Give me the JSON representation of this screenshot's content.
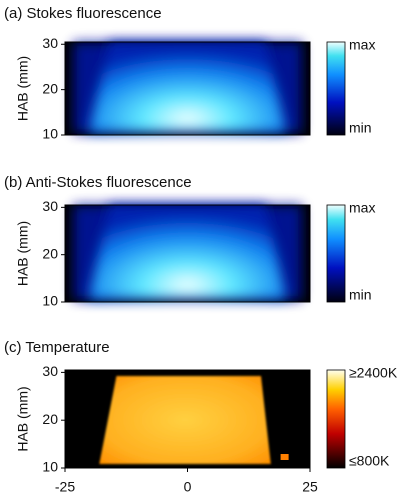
{
  "chart_data": [
    {
      "type": "heatmap",
      "title": "(a) Stokes fluorescence",
      "ylabel": "HAB (mm)",
      "xlim": [
        -25,
        25
      ],
      "ylim": [
        10,
        30.5
      ],
      "yticks": [
        10,
        20,
        30
      ],
      "colormap": "blue",
      "colorbar_max": "max",
      "colorbar_min": "min"
    },
    {
      "type": "heatmap",
      "title": "(b) Anti-Stokes fluorescence",
      "ylabel": "HAB (mm)",
      "xlim": [
        -25,
        25
      ],
      "ylim": [
        10,
        30.5
      ],
      "yticks": [
        10,
        20,
        30
      ],
      "colormap": "blue",
      "colorbar_max": "max",
      "colorbar_min": "min"
    },
    {
      "type": "heatmap",
      "title": "(c) Temperature",
      "ylabel": "HAB (mm)",
      "xlim": [
        -25,
        25
      ],
      "ylim": [
        10,
        30.5
      ],
      "yticks": [
        10,
        20,
        30
      ],
      "xticks": [
        -25,
        0,
        25
      ],
      "colormap": "hot",
      "colorbar_max": "≥2400K",
      "colorbar_min": "≤800K"
    }
  ]
}
